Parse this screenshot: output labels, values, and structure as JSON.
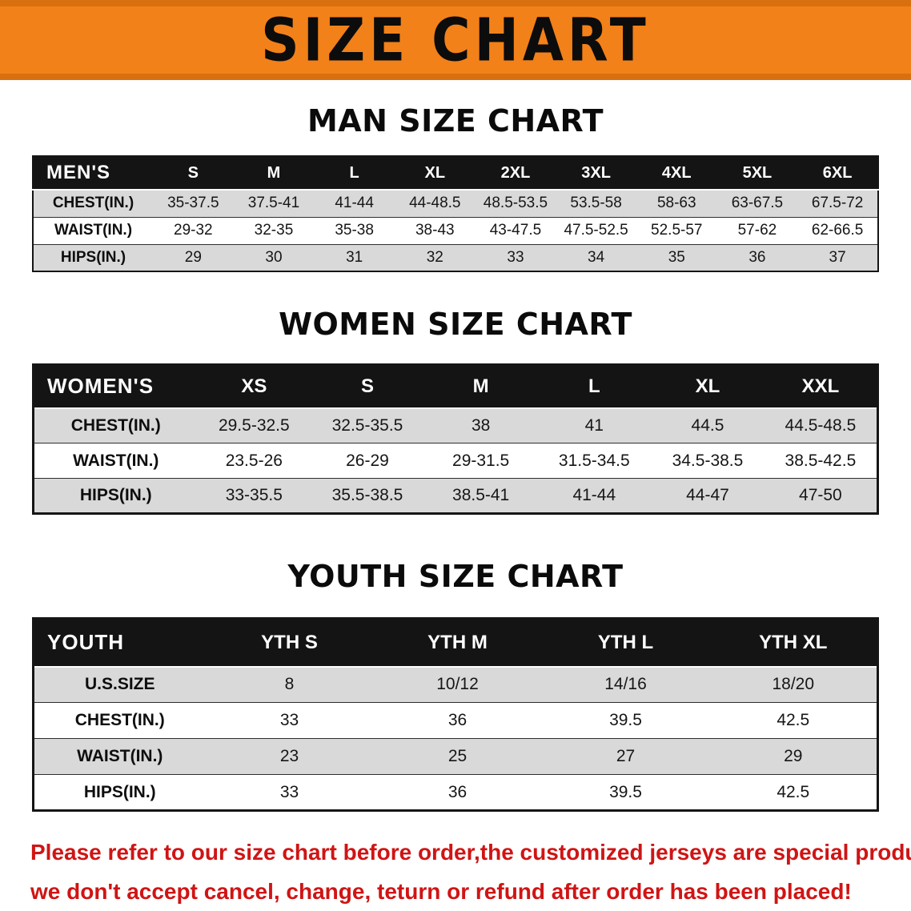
{
  "title": "SIZE CHART",
  "colors": {
    "banner_orange": "#f28119",
    "header_black": "#141414",
    "row_gray": "#d9d9d9",
    "disclaimer_red": "#d01414"
  },
  "sections": [
    {
      "heading": "MAN SIZE CHART",
      "table": {
        "label": "MEN'S",
        "columns": [
          "S",
          "M",
          "L",
          "XL",
          "2XL",
          "3XL",
          "4XL",
          "5XL",
          "6XL"
        ],
        "rows": [
          {
            "label": "CHEST(IN.)",
            "values": [
              "35-37.5",
              "37.5-41",
              "41-44",
              "44-48.5",
              "48.5-53.5",
              "53.5-58",
              "58-63",
              "63-67.5",
              "67.5-72"
            ]
          },
          {
            "label": "WAIST(IN.)",
            "values": [
              "29-32",
              "32-35",
              "35-38",
              "38-43",
              "43-47.5",
              "47.5-52.5",
              "52.5-57",
              "57-62",
              "62-66.5"
            ]
          },
          {
            "label": "HIPS(IN.)",
            "values": [
              "29",
              "30",
              "31",
              "32",
              "33",
              "34",
              "35",
              "36",
              "37"
            ]
          }
        ]
      }
    },
    {
      "heading": "WOMEN SIZE CHART",
      "table": {
        "label": "WOMEN'S",
        "columns": [
          "XS",
          "S",
          "M",
          "L",
          "XL",
          "XXL"
        ],
        "rows": [
          {
            "label": "CHEST(IN.)",
            "values": [
              "29.5-32.5",
              "32.5-35.5",
              "38",
              "41",
              "44.5",
              "44.5-48.5"
            ]
          },
          {
            "label": "WAIST(IN.)",
            "values": [
              "23.5-26",
              "26-29",
              "29-31.5",
              "31.5-34.5",
              "34.5-38.5",
              "38.5-42.5"
            ]
          },
          {
            "label": "HIPS(IN.)",
            "values": [
              "33-35.5",
              "35.5-38.5",
              "38.5-41",
              "41-44",
              "44-47",
              "47-50"
            ]
          }
        ]
      }
    },
    {
      "heading": "YOUTH SIZE CHART",
      "table": {
        "label": "YOUTH",
        "columns": [
          "YTH S",
          "YTH M",
          "YTH L",
          "YTH XL"
        ],
        "rows": [
          {
            "label": "U.S.SIZE",
            "values": [
              "8",
              "10/12",
              "14/16",
              "18/20"
            ]
          },
          {
            "label": "CHEST(IN.)",
            "values": [
              "33",
              "36",
              "39.5",
              "42.5"
            ]
          },
          {
            "label": "WAIST(IN.)",
            "values": [
              "23",
              "25",
              "27",
              "29"
            ]
          },
          {
            "label": "HIPS(IN.)",
            "values": [
              "33",
              "36",
              "39.5",
              "42.5"
            ]
          }
        ]
      }
    }
  ],
  "footer": {
    "line1": "Please refer to our size chart before order,the customized jerseys are special products,",
    "line2": "we don't accept cancel, change, teturn or refund after order has been placed!"
  }
}
